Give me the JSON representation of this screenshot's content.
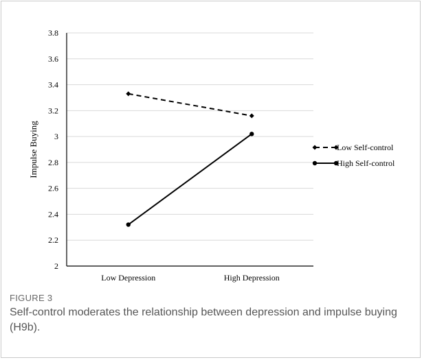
{
  "figure": {
    "label": "FIGURE 3",
    "caption": "Self-control moderates the relationship between depression and impulse buying (H9b)."
  },
  "chart_data": {
    "type": "line",
    "categories": [
      "Low Depression",
      "High Depression"
    ],
    "series": [
      {
        "name": "Low Self-control",
        "values": [
          3.33,
          3.16
        ],
        "style": "dashed",
        "marker": "diamond",
        "color": "#000000"
      },
      {
        "name": "High Self-control",
        "values": [
          2.32,
          3.02
        ],
        "style": "solid",
        "marker": "circle",
        "color": "#000000"
      }
    ],
    "xlabel": "",
    "ylabel": "Impulse Buying",
    "ylim": [
      2,
      3.8
    ],
    "yticks": [
      "2",
      "2.2",
      "2.4",
      "2.6",
      "2.8",
      "3",
      "3.2",
      "3.4",
      "3.6",
      "3.8"
    ],
    "grid": true,
    "legend_position": "right"
  }
}
